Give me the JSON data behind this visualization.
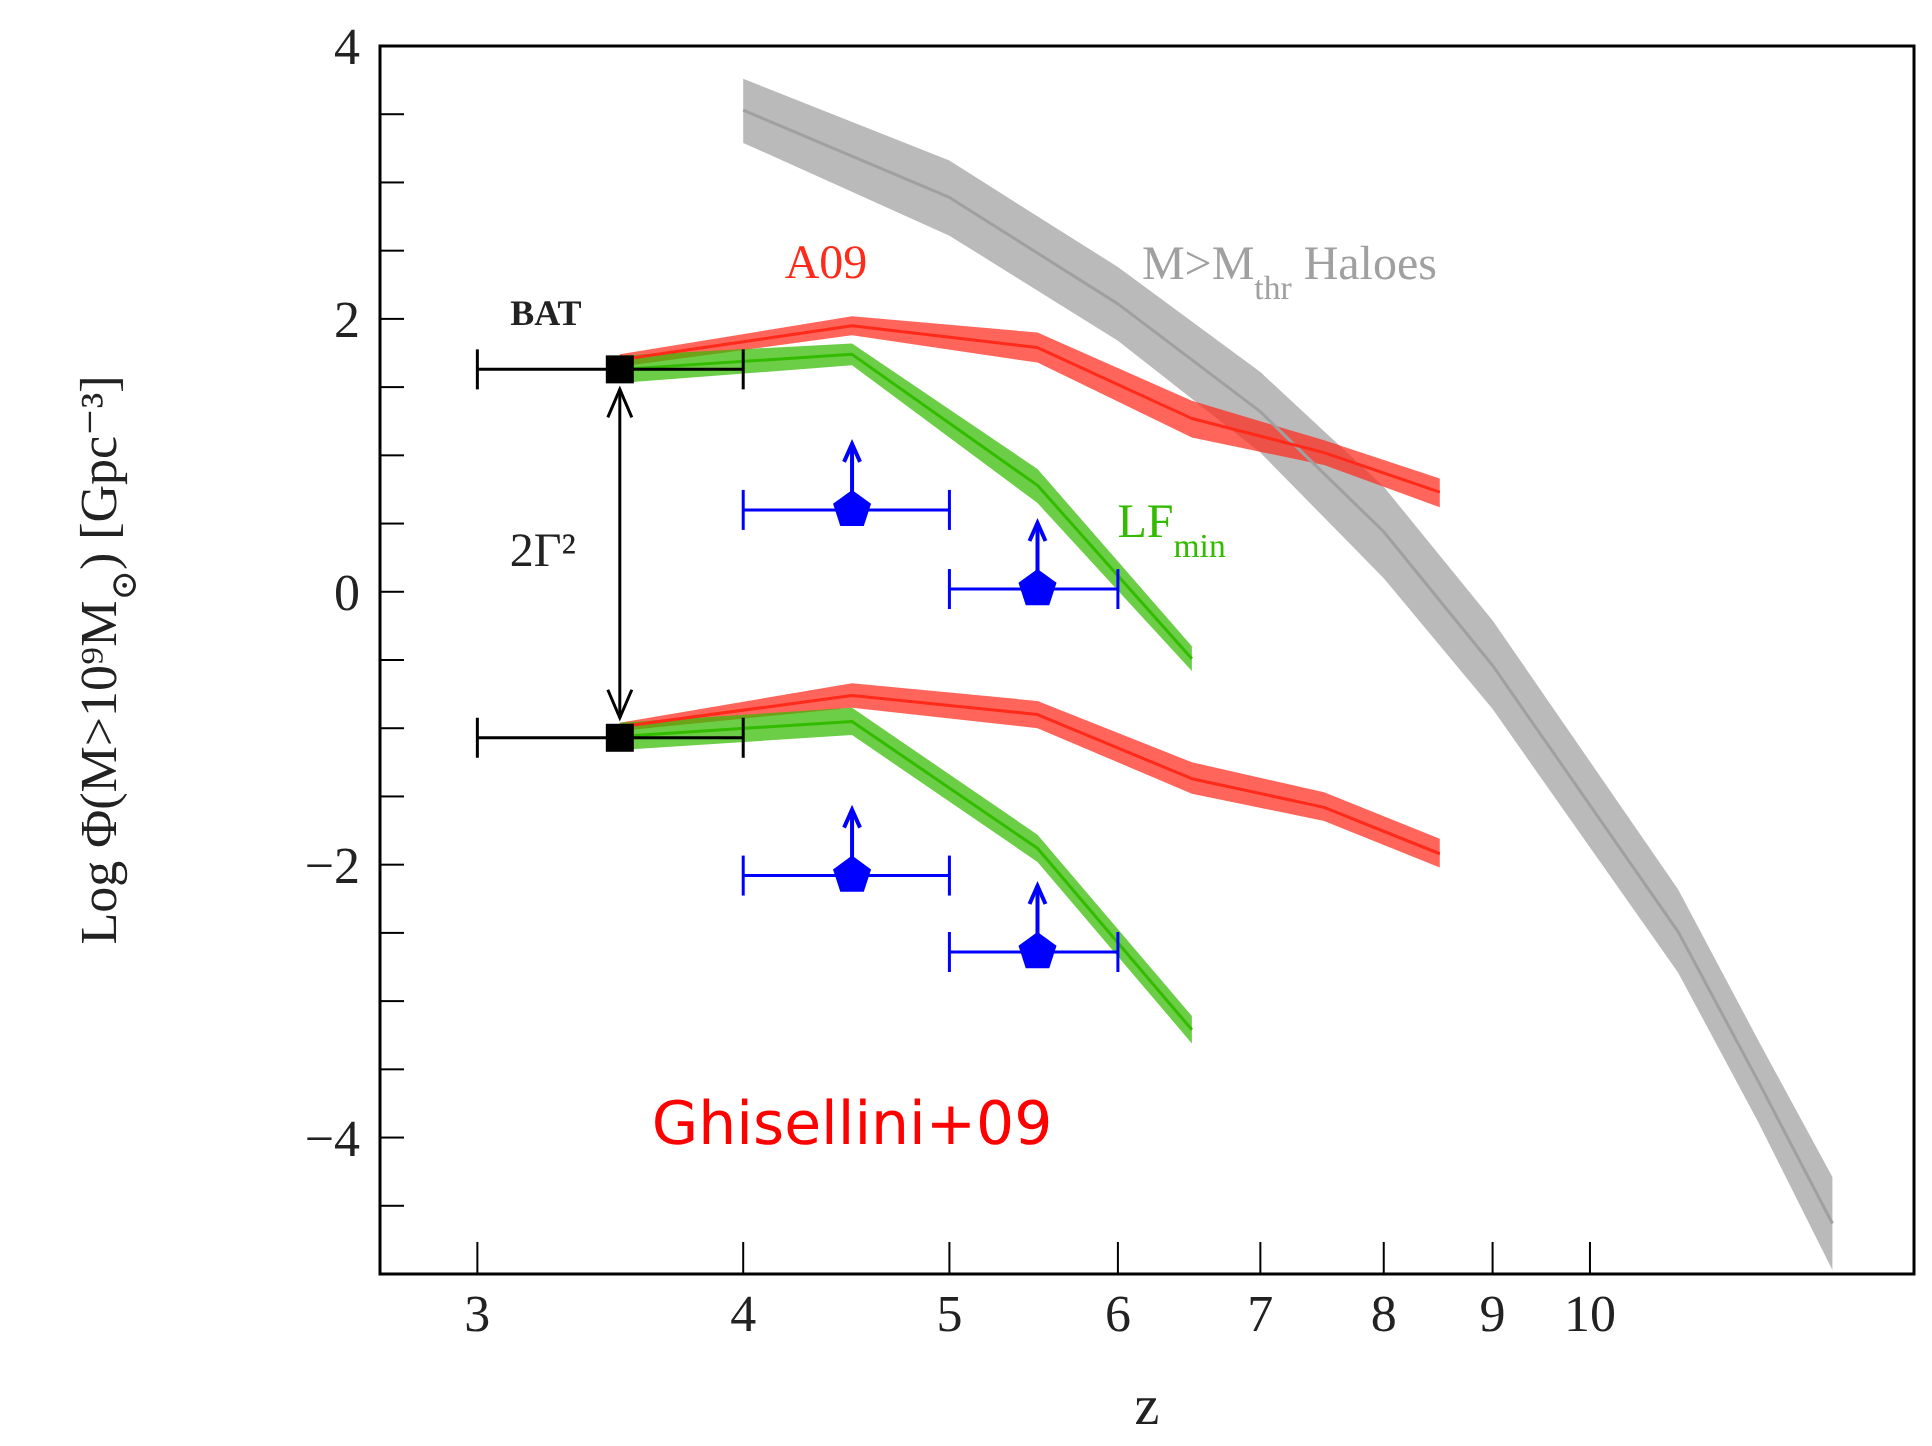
{
  "chart_data": {
    "type": "line",
    "xlabel": "z",
    "ylabel": "Log Φ(M>10⁹M$_{⊙}$)  [Gpc⁻³]",
    "log": "x",
    "xlim": [
      2.7,
      14.2
    ],
    "xticks": [
      3,
      4,
      5,
      6,
      7,
      8,
      9,
      10
    ],
    "ylim": [
      -5,
      4
    ],
    "yticks": [
      {
        "value": -4.5,
        "label": null
      },
      -4,
      {
        "value": -3.5,
        "label": null
      },
      {
        "value": -3,
        "label": null
      },
      {
        "value": -2.5,
        "label": null
      },
      -2,
      {
        "value": -1.5,
        "label": null
      },
      {
        "value": -1,
        "label": null
      },
      {
        "value": -0.5,
        "label": null
      },
      0,
      {
        "value": 0.5,
        "label": null
      },
      {
        "value": 1,
        "label": null
      },
      {
        "value": 1.5,
        "label": null
      },
      2,
      {
        "value": 2.5,
        "label": null
      },
      {
        "value": 3,
        "label": null
      },
      {
        "value": 3.5,
        "label": null
      },
      4
    ],
    "annotations": [
      "2Γ²",
      "Ghisellini+09"
    ],
    "series": [
      {
        "name": "M>M$_{thr}$ Haloes",
        "color": "#a0a0a0",
        "x": [
          4,
          5,
          6,
          7,
          8,
          9,
          11,
          12,
          13
        ],
        "values": [
          3.53,
          2.89,
          2.11,
          1.32,
          0.44,
          -0.54,
          -2.49,
          -3.59,
          -4.63
        ],
        "lower": [
          3.29,
          2.61,
          1.84,
          1.02,
          0.1,
          -0.86,
          -2.79,
          -3.89,
          -4.97
        ],
        "upper": [
          3.76,
          3.16,
          2.38,
          1.61,
          0.77,
          -0.21,
          -2.18,
          -3.29,
          -4.29
        ]
      },
      {
        "name": "A09",
        "color": "#ff2a1a",
        "x": [
          3.5,
          4.5,
          5.5,
          6.5,
          7.5,
          8.5
        ],
        "values": [
          1.7,
          1.95,
          1.79,
          1.27,
          1.02,
          0.73
        ],
        "lower": [
          1.65,
          1.88,
          1.68,
          1.13,
          0.93,
          0.62
        ],
        "upper": [
          1.74,
          2.02,
          1.9,
          1.4,
          1.11,
          0.83
        ]
      },
      {
        "color": "#ff2a1a",
        "x": [
          3.5,
          4.5,
          5.5,
          6.5,
          7.5,
          8.5
        ],
        "values": [
          -0.99,
          -0.76,
          -0.9,
          -1.37,
          -1.58,
          -1.92
        ],
        "lower": [
          -1.02,
          -0.85,
          -1.0,
          -1.48,
          -1.68,
          -2.02
        ],
        "upper": [
          -0.96,
          -0.67,
          -0.8,
          -1.25,
          -1.47,
          -1.81
        ]
      },
      {
        "name": "LF$_{min}$",
        "color": "#33bb00",
        "x": [
          3.5,
          4.5,
          5.5,
          6.5
        ],
        "values": [
          1.63,
          1.74,
          0.78,
          -0.49
        ],
        "lower": [
          1.53,
          1.66,
          0.65,
          -0.58
        ],
        "upper": [
          1.73,
          1.82,
          0.9,
          -0.4
        ]
      },
      {
        "color": "#33bb00",
        "x": [
          3.5,
          4.5,
          5.5,
          6.5
        ],
        "values": [
          -1.06,
          -0.95,
          -1.88,
          -3.21
        ],
        "lower": [
          -1.16,
          -1.05,
          -1.98,
          -3.31
        ],
        "upper": [
          -0.96,
          -0.85,
          -1.78,
          -3.11
        ]
      },
      {
        "type": "scatter",
        "name": "BAT",
        "color": "#000000",
        "marker": "square",
        "x": [
          3.5,
          3.5
        ],
        "values": [
          1.63,
          -1.07
        ],
        "xerrors": [
          0.5,
          0.5
        ]
      },
      {
        "type": "scatter",
        "color": "#0000ff",
        "x": [
          4.5,
          5.5,
          4.5,
          5.5
        ],
        "values": [
          0.6,
          0.02,
          -2.08,
          -2.64
        ],
        "xerrors": [
          0.5,
          0.5,
          0.5,
          0.5
        ]
      }
    ]
  }
}
